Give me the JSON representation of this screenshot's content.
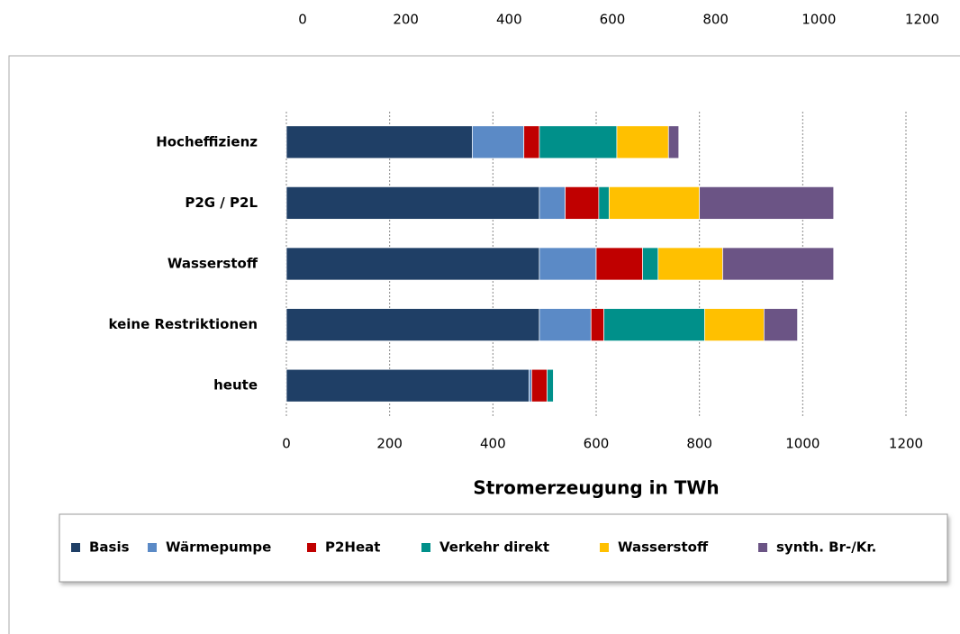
{
  "chart_data": {
    "type": "stacked_barh",
    "x_label": "Stromerzeugung in TWh",
    "categories": [
      "Hocheffizienz",
      "P2G / P2L",
      "Wasserstoff",
      "keine Restriktionen",
      "heute"
    ],
    "series": [
      {
        "name": "Basis",
        "color": "#1f3f66",
        "values": [
          360,
          490,
          490,
          490,
          470
        ]
      },
      {
        "name": "Wärmepumpe",
        "color": "#5b8ac6",
        "values": [
          100,
          50,
          110,
          100,
          5
        ]
      },
      {
        "name": "P2Heat",
        "color": "#c00000",
        "values": [
          30,
          65,
          90,
          25,
          30
        ]
      },
      {
        "name": "Verkehr direkt",
        "color": "#00908a",
        "values": [
          150,
          20,
          30,
          195,
          12
        ]
      },
      {
        "name": "Wasserstoff",
        "color": "#ffc000",
        "values": [
          100,
          175,
          125,
          115,
          0
        ]
      },
      {
        "name": "synth. Br-/Kr.",
        "color": "#6b5485",
        "values": [
          20,
          260,
          215,
          65,
          0
        ]
      }
    ],
    "xlim": [
      0,
      1200
    ],
    "xticks": [
      0,
      200,
      400,
      600,
      800,
      1000,
      1200
    ],
    "grid": true,
    "legend": "bottom"
  }
}
